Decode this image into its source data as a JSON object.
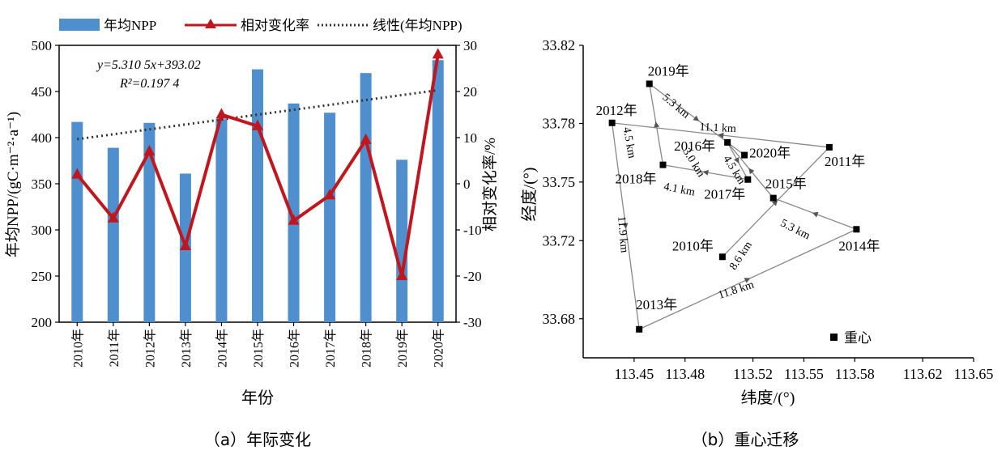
{
  "chart_data": [
    {
      "type": "bar",
      "caption": "（a）年际变化",
      "categories": [
        "2010年",
        "2011年",
        "2012年",
        "2013年",
        "2014年",
        "2015年",
        "2016年",
        "2017年",
        "2018年",
        "2019年",
        "2020年"
      ],
      "series": [
        {
          "name": "年均NPP",
          "type": "bar",
          "axis": "left",
          "color": "#4f8fcd",
          "values": [
            417,
            389,
            416,
            361,
            420,
            474,
            437,
            427,
            470,
            376,
            484
          ]
        },
        {
          "name": "相对变化率",
          "type": "line",
          "axis": "right",
          "color": "#c0161e",
          "values": [
            2,
            -7.5,
            7,
            -13.5,
            15,
            12.5,
            -8,
            -2.5,
            9.5,
            -20,
            28
          ]
        },
        {
          "name": "线性(年均NPP)",
          "type": "trend",
          "axis": "left",
          "color": "#333333",
          "start": 398.3,
          "end": 451.4
        }
      ],
      "equation": "y=5.310 5x+393.02",
      "r2": "R²=0.197 4",
      "xlabel": "年份",
      "ylabel_left": "年均NPP/(gC·m⁻²·a⁻¹)",
      "ylabel_right": "相对变化率/%",
      "ylim_left": [
        200,
        500
      ],
      "yticks_left": [
        "200",
        "250",
        "300",
        "350",
        "400",
        "450",
        "500"
      ],
      "ylim_right": [
        -30,
        30
      ],
      "yticks_right": [
        "-30",
        "-20",
        "-10",
        "0",
        "10",
        "20",
        "30"
      ],
      "legend": "top"
    },
    {
      "type": "scatter",
      "caption": "（b）重心迁移",
      "xlabel": "纬度/(°)",
      "ylabel": "经度/(°)",
      "xlim": [
        113.42,
        113.65
      ],
      "ylim": [
        33.66,
        33.82
      ],
      "xticks": [
        "113.45",
        "113.48",
        "113.52",
        "113.55",
        "113.58",
        "113.62",
        "113.65"
      ],
      "yticks": [
        "33.68",
        "33.72",
        "33.75",
        "33.78",
        "33.82"
      ],
      "points": [
        {
          "label": "2010年",
          "x": 113.502,
          "y": 33.7117
        },
        {
          "label": "2011年",
          "x": 113.565,
          "y": 33.7678
        },
        {
          "label": "2012年",
          "x": 113.437,
          "y": 33.7803
        },
        {
          "label": "2013年",
          "x": 113.453,
          "y": 33.6746
        },
        {
          "label": "2014年",
          "x": 113.581,
          "y": 33.7258
        },
        {
          "label": "2015年",
          "x": 113.532,
          "y": 33.7418
        },
        {
          "label": "2016年",
          "x": 113.505,
          "y": 33.7703
        },
        {
          "label": "2017年",
          "x": 113.517,
          "y": 33.7513
        },
        {
          "label": "2018年",
          "x": 113.467,
          "y": 33.7588
        },
        {
          "label": "2019年",
          "x": 113.459,
          "y": 33.8003
        },
        {
          "label": "2020年",
          "x": 113.515,
          "y": 33.7638
        }
      ],
      "distances": [
        "8.6 km",
        "11.1 km",
        "11.9 km",
        "11.8 km",
        "5.3 km",
        "4.5 km",
        "3.0 km",
        "4.1 km",
        "4.5 km",
        "5.3 km"
      ],
      "center_label": "重心"
    }
  ]
}
